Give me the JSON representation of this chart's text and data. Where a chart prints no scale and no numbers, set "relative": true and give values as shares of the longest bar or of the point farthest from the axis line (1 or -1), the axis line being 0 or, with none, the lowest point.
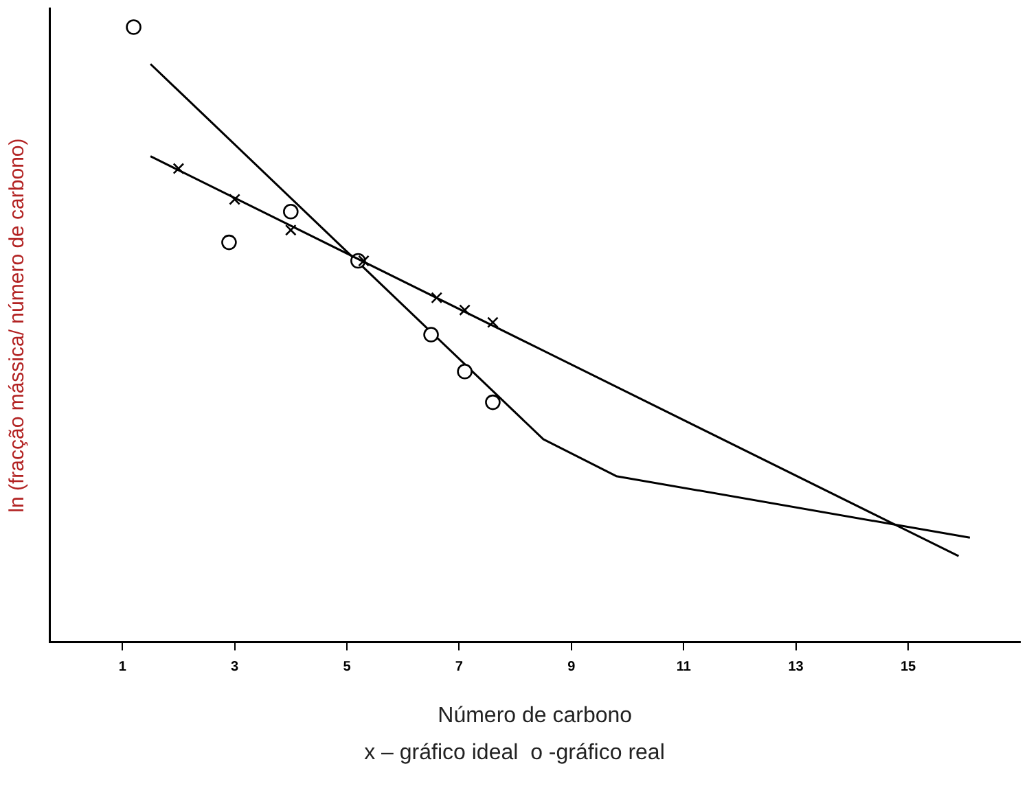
{
  "chart_data": {
    "type": "scatter",
    "relative": true,
    "xlabel": "Número de carbono",
    "ylabel": "ln (fracção mássica/ número de carbono)",
    "xlim": [
      -0.3,
      17
    ],
    "xticks": [
      1,
      3,
      5,
      7,
      9,
      11,
      13,
      15
    ],
    "grid": false,
    "legend": false,
    "annotations": [
      "x – gráfico ideal  o -gráfico real"
    ],
    "series": [
      {
        "marker": "cross",
        "color": "#000000",
        "x": [
          2,
          3,
          4,
          5.3,
          6.6,
          7.1,
          7.6
        ],
        "values": [
          0.77,
          0.72,
          0.67,
          0.62,
          0.56,
          0.54,
          0.52
        ]
      },
      {
        "type": "line",
        "marker": "none",
        "line_style": "solid",
        "color": "#000000",
        "x": [
          1.5,
          15.9
        ],
        "values": [
          0.79,
          0.14
        ]
      },
      {
        "marker": "circle",
        "color": "#000000",
        "x": [
          1.2,
          2.9,
          4,
          5.2,
          6.5,
          7.1,
          7.6
        ],
        "values": [
          1,
          0.65,
          0.7,
          0.62,
          0.5,
          0.44,
          0.39
        ]
      },
      {
        "type": "line",
        "marker": "none",
        "line_style": "solid",
        "color": "#000000",
        "x": [
          1.5,
          8.5,
          9.8,
          16.1
        ],
        "values": [
          0.94,
          0.33,
          0.27,
          0.17
        ]
      }
    ]
  }
}
